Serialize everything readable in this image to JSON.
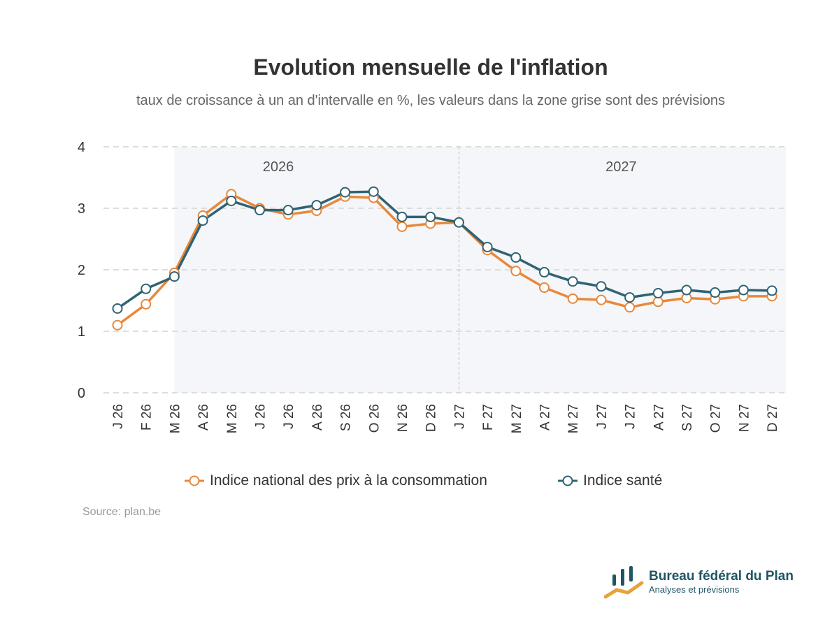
{
  "header": {
    "title": "Evolution mensuelle de l'inflation",
    "subtitle": "taux de croissance à un an d'intervalle en %, les valeurs dans la zone grise sont des prévisions"
  },
  "chart_data": {
    "type": "line",
    "categories": [
      "J 26",
      "F 26",
      "M 26",
      "A 26",
      "M 26",
      "J 26",
      "J 26",
      "A 26",
      "S 26",
      "O 26",
      "N 26",
      "D 26",
      "J 27",
      "F 27",
      "M 27",
      "A 27",
      "M 27",
      "J 27",
      "J 27",
      "A 27",
      "S 27",
      "O 27",
      "N 27",
      "D 27"
    ],
    "y_ticks": [
      "0",
      "1",
      "2",
      "3",
      "4"
    ],
    "ylim": [
      0,
      4
    ],
    "grid": true,
    "forecast_shading": {
      "from_index": 2,
      "to_index": 23
    },
    "year_labels": [
      {
        "label": "2026",
        "center_index": 5.65
      },
      {
        "label": "2027",
        "center_index": 17.7
      }
    ],
    "year_divider_index": 12,
    "series": [
      {
        "name": "Indice national des prix à la consommation",
        "color": "#e8883a",
        "values": [
          1.1,
          1.44,
          1.95,
          2.88,
          3.23,
          3.0,
          2.9,
          2.96,
          3.19,
          3.17,
          2.7,
          2.75,
          2.77,
          2.32,
          1.98,
          1.71,
          1.53,
          1.51,
          1.39,
          1.48,
          1.54,
          1.52,
          1.57,
          1.57
        ]
      },
      {
        "name": "Indice santé",
        "color": "#2f6373",
        "values": [
          1.37,
          1.69,
          1.89,
          2.8,
          3.12,
          2.97,
          2.97,
          3.05,
          3.26,
          3.27,
          2.86,
          2.86,
          2.77,
          2.37,
          2.2,
          1.96,
          1.81,
          1.73,
          1.55,
          1.62,
          1.67,
          1.63,
          1.67,
          1.66
        ]
      }
    ]
  },
  "footer": {
    "source": "Source: plan.be"
  },
  "logo": {
    "name": "Bureau fédéral du Plan",
    "tagline": "Analyses et prévisions"
  },
  "colors": {
    "forecast_zone": "#f4f6f9",
    "grid": "#dddddd",
    "divider": "#bbbbbb",
    "logo_teal": "#1f5565",
    "logo_orange": "#e8a23a"
  }
}
